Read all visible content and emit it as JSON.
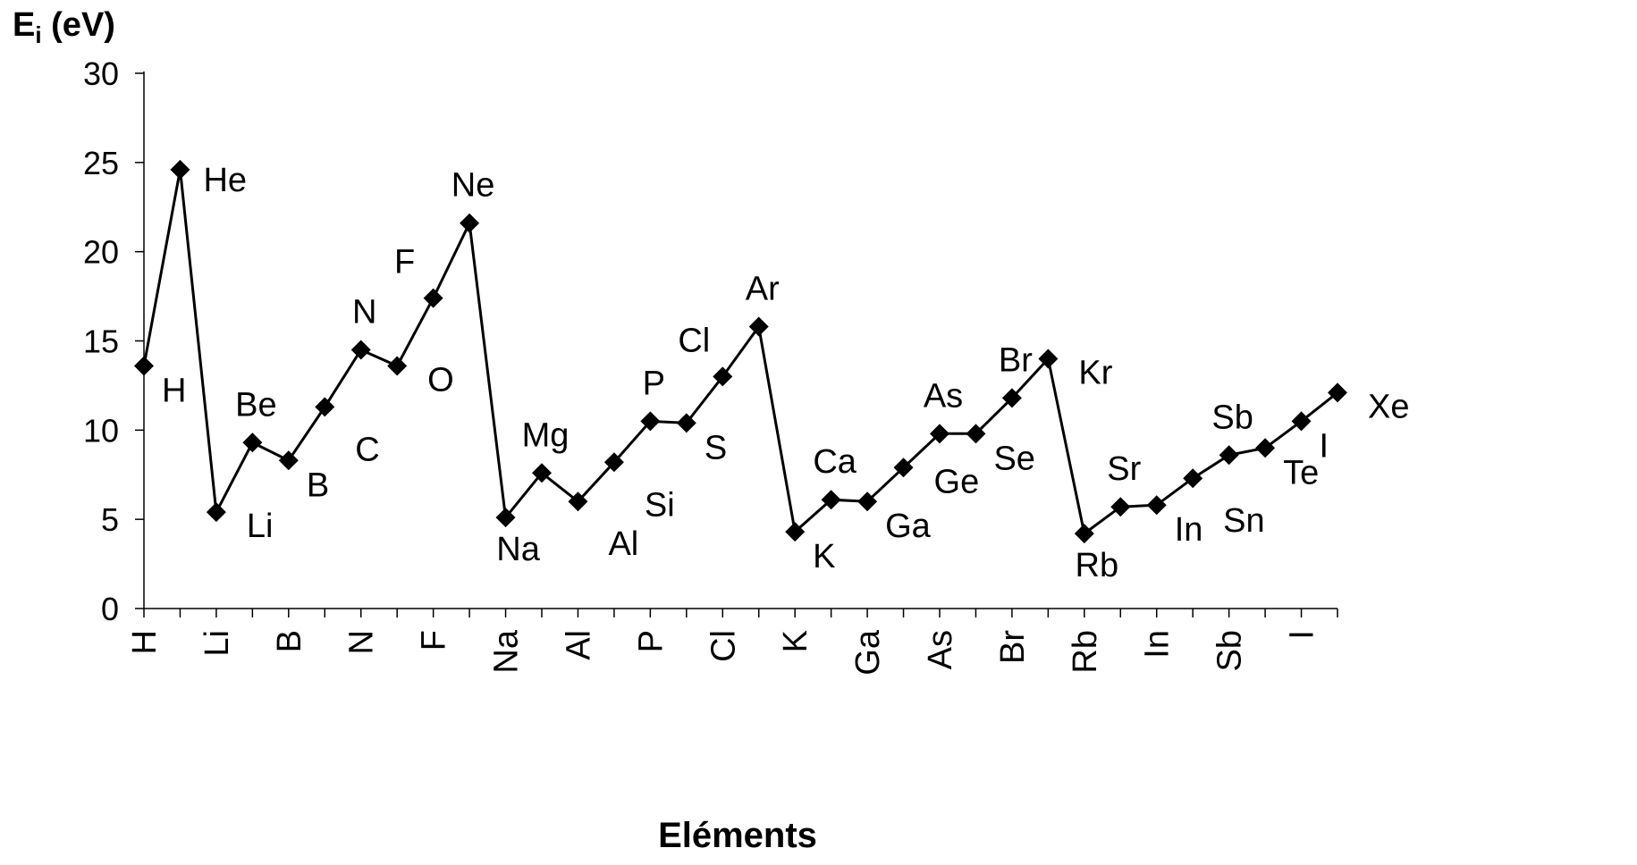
{
  "chart_data": {
    "type": "line",
    "title": "",
    "ylabel_main": "E",
    "ylabel_sub": "i",
    "ylabel_unit": " (eV)",
    "xlabel": "Eléments",
    "ylim": [
      0,
      30
    ],
    "yticks": [
      0,
      5,
      10,
      15,
      20,
      25,
      30
    ],
    "grid": false,
    "legend": "none",
    "line_color": "#000000",
    "marker": "diamond",
    "x_tick_labels": [
      "H",
      "Li",
      "B",
      "N",
      "F",
      "Na",
      "Al",
      "P",
      "Cl",
      "K",
      "Ga",
      "As",
      "Br",
      "Rb",
      "In",
      "Sb",
      "I"
    ],
    "points": [
      {
        "label": "H",
        "value": 13.6,
        "label_pos": "below-right"
      },
      {
        "label": "He",
        "value": 24.6,
        "label_pos": "right-slightly-below"
      },
      {
        "label": "Li",
        "value": 5.4,
        "label_pos": "right"
      },
      {
        "label": "Be",
        "value": 9.3,
        "label_pos": "above"
      },
      {
        "label": "B",
        "value": 8.3,
        "label_pos": "below-right"
      },
      {
        "label": "C",
        "value": 11.3,
        "label_pos": "below-right-far"
      },
      {
        "label": "N",
        "value": 14.5,
        "label_pos": "above"
      },
      {
        "label": "O",
        "value": 13.6,
        "label_pos": "right"
      },
      {
        "label": "F",
        "value": 17.4,
        "label_pos": "above-left"
      },
      {
        "label": "Ne",
        "value": 21.6,
        "label_pos": "above"
      },
      {
        "label": "Na",
        "value": 5.1,
        "label_pos": "below"
      },
      {
        "label": "Mg",
        "value": 7.6,
        "label_pos": "above"
      },
      {
        "label": "Al",
        "value": 6.0,
        "label_pos": "below-right-far"
      },
      {
        "label": "Si",
        "value": 8.2,
        "label_pos": "below-right-far"
      },
      {
        "label": "P",
        "value": 10.5,
        "label_pos": "above"
      },
      {
        "label": "S",
        "value": 10.4,
        "label_pos": "below-right"
      },
      {
        "label": "Cl",
        "value": 13.0,
        "label_pos": "above-left"
      },
      {
        "label": "Ar",
        "value": 15.8,
        "label_pos": "above"
      },
      {
        "label": "K",
        "value": 4.3,
        "label_pos": "below-right"
      },
      {
        "label": "Ca",
        "value": 6.1,
        "label_pos": "above"
      },
      {
        "label": "Ga",
        "value": 6.0,
        "label_pos": "below-right"
      },
      {
        "label": "Ge",
        "value": 7.9,
        "label_pos": "right"
      },
      {
        "label": "As",
        "value": 9.8,
        "label_pos": "above"
      },
      {
        "label": "Se",
        "value": 9.8,
        "label_pos": "below-right"
      },
      {
        "label": "Br",
        "value": 11.8,
        "label_pos": "above"
      },
      {
        "label": "Kr",
        "value": 14.0,
        "label_pos": "right"
      },
      {
        "label": "Rb",
        "value": 4.2,
        "label_pos": "below"
      },
      {
        "label": "Sr",
        "value": 5.7,
        "label_pos": "above"
      },
      {
        "label": "In",
        "value": 5.8,
        "label_pos": "below-right"
      },
      {
        "label": "Sn",
        "value": 7.3,
        "label_pos": "below-right-far"
      },
      {
        "label": "Sb",
        "value": 8.6,
        "label_pos": "above"
      },
      {
        "label": "Te",
        "value": 9.0,
        "label_pos": "below-right"
      },
      {
        "label": "I",
        "value": 10.5,
        "label_pos": "below-right"
      },
      {
        "label": "Xe",
        "value": 12.1,
        "label_pos": "right"
      }
    ]
  }
}
